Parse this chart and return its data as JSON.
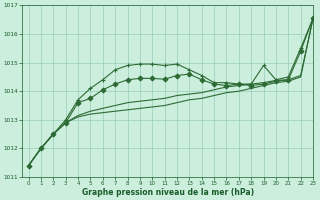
{
  "title": "Graphe pression niveau de la mer (hPa)",
  "background_color": "#cceedd",
  "grid_color": "#99ccbb",
  "text_color": "#1a5c2a",
  "line_color": "#2d6b35",
  "xlim": [
    -0.5,
    23
  ],
  "ylim": [
    1011,
    1017
  ],
  "xticks": [
    0,
    1,
    2,
    3,
    4,
    5,
    6,
    7,
    8,
    9,
    10,
    11,
    12,
    13,
    14,
    15,
    16,
    17,
    18,
    19,
    20,
    21,
    22,
    23
  ],
  "yticks": [
    1011,
    1012,
    1013,
    1014,
    1015,
    1016,
    1017
  ],
  "series": [
    {
      "x": [
        0,
        1,
        2,
        3,
        4,
        5,
        6,
        7,
        8,
        9,
        10,
        11,
        12,
        13,
        14,
        15,
        16,
        17,
        18,
        19,
        20,
        21,
        22,
        23
      ],
      "y": [
        1011.4,
        1012.0,
        1012.5,
        1013.0,
        1013.7,
        1014.1,
        1014.4,
        1014.75,
        1014.9,
        1014.95,
        1014.95,
        1014.9,
        1014.95,
        1014.75,
        1014.55,
        1014.3,
        1014.3,
        1014.25,
        1014.25,
        1014.9,
        1014.4,
        1014.5,
        1015.5,
        1016.55
      ],
      "marker": "+",
      "markersize": 3.5
    },
    {
      "x": [
        0,
        1,
        2,
        3,
        4,
        5,
        6,
        7,
        8,
        9,
        10,
        11,
        12,
        13,
        14,
        15,
        16,
        17,
        18,
        19,
        20,
        21,
        22,
        23
      ],
      "y": [
        1011.4,
        1012.0,
        1012.5,
        1012.9,
        1013.6,
        1013.75,
        1014.05,
        1014.25,
        1014.4,
        1014.45,
        1014.45,
        1014.42,
        1014.55,
        1014.6,
        1014.4,
        1014.25,
        1014.2,
        1014.25,
        1014.2,
        1014.25,
        1014.35,
        1014.4,
        1015.4,
        1016.55
      ],
      "marker": "D",
      "markersize": 2.5
    },
    {
      "x": [
        0,
        1,
        2,
        3,
        4,
        5,
        6,
        7,
        8,
        9,
        10,
        11,
        12,
        13,
        14,
        15,
        16,
        17,
        18,
        19,
        20,
        21,
        22,
        23
      ],
      "y": [
        1011.4,
        1012.0,
        1012.5,
        1012.9,
        1013.1,
        1013.2,
        1013.25,
        1013.3,
        1013.35,
        1013.4,
        1013.45,
        1013.5,
        1013.6,
        1013.7,
        1013.75,
        1013.85,
        1013.95,
        1014.0,
        1014.1,
        1014.2,
        1014.3,
        1014.35,
        1014.5,
        1016.55
      ],
      "marker": null,
      "markersize": 0
    },
    {
      "x": [
        0,
        1,
        2,
        3,
        4,
        5,
        6,
        7,
        8,
        9,
        10,
        11,
        12,
        13,
        14,
        15,
        16,
        17,
        18,
        19,
        20,
        21,
        22,
        23
      ],
      "y": [
        1011.4,
        1012.0,
        1012.5,
        1012.9,
        1013.15,
        1013.3,
        1013.4,
        1013.5,
        1013.6,
        1013.65,
        1013.7,
        1013.75,
        1013.85,
        1013.9,
        1013.95,
        1014.05,
        1014.15,
        1014.2,
        1014.25,
        1014.3,
        1014.38,
        1014.4,
        1014.55,
        1016.55
      ],
      "marker": null,
      "markersize": 0
    }
  ]
}
